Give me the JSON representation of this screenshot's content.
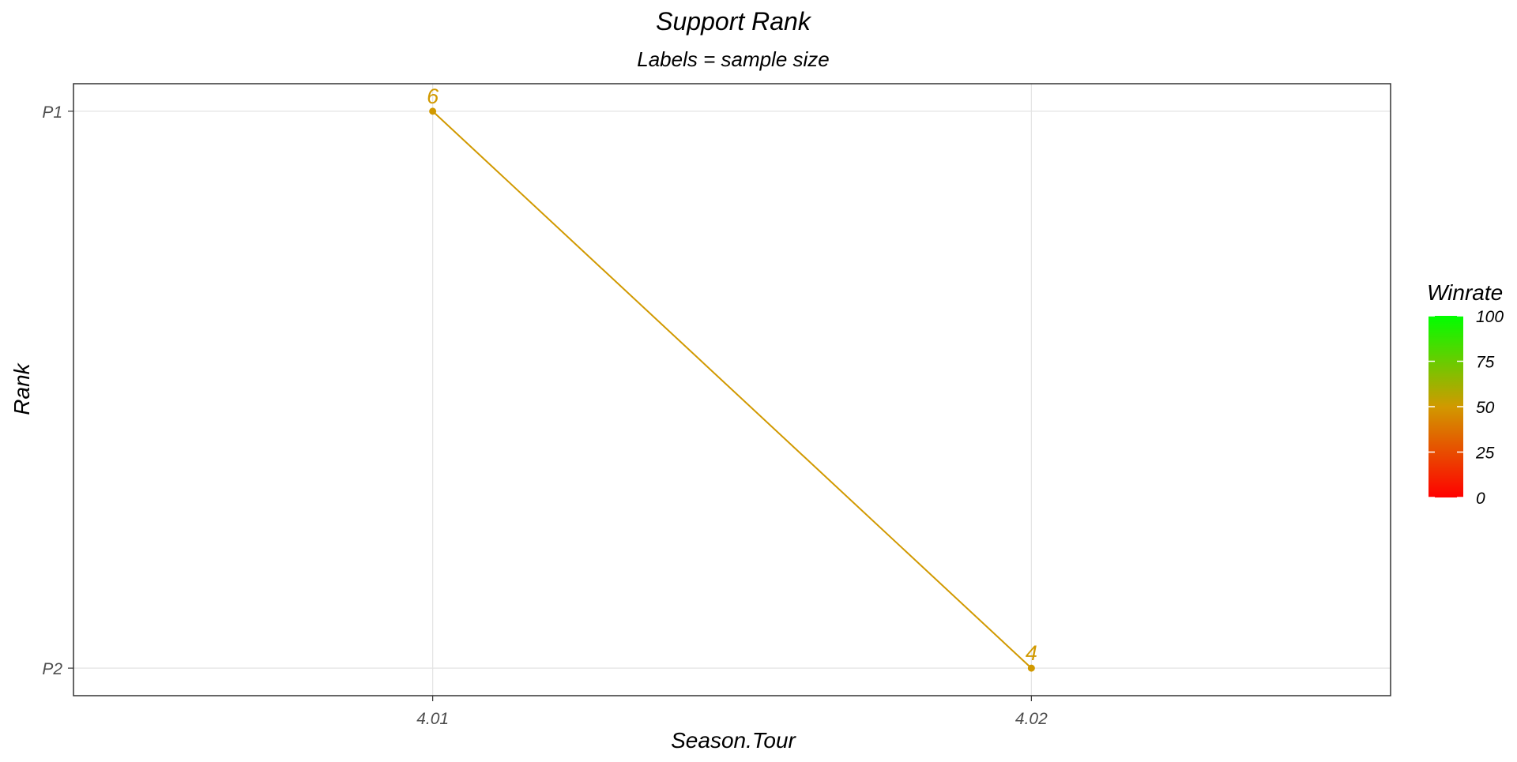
{
  "chart_data": {
    "type": "line",
    "title": "Support Rank",
    "subtitle": "Labels = sample size",
    "xlabel": "Season.Tour",
    "ylabel": "Rank",
    "x_categories": [
      "4.01",
      "4.02"
    ],
    "y_categories": [
      "P1",
      "P2"
    ],
    "grid": true,
    "points": [
      {
        "x": "4.01",
        "y": "P1",
        "label": "6",
        "winrate": 50
      },
      {
        "x": "4.02",
        "y": "P2",
        "label": "4",
        "winrate": 50
      }
    ],
    "line_color": "#D19900",
    "legend": {
      "title": "Winrate",
      "position": "right",
      "range": [
        0,
        100
      ],
      "ticks": [
        "0",
        "25",
        "50",
        "75",
        "100"
      ],
      "color_low": "#FF0000",
      "color_high": "#00FF00"
    }
  }
}
